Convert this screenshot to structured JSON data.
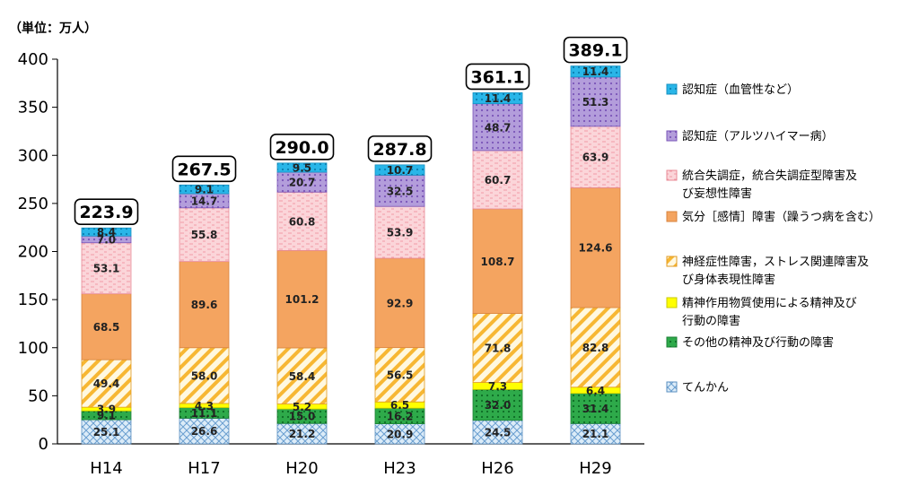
{
  "chart_data": {
    "type": "bar",
    "stacked": true,
    "unit_label": "（単位：万人）",
    "categories": [
      "H14",
      "H17",
      "H20",
      "H23",
      "H26",
      "H29"
    ],
    "ylim": [
      0,
      400
    ],
    "yticks": [
      0,
      50,
      100,
      150,
      200,
      250,
      300,
      350,
      400
    ],
    "grid": false,
    "legend_position": "right",
    "totals": [
      "223.9",
      "267.5",
      "290.0",
      "287.8",
      "361.1",
      "389.1"
    ],
    "series": [
      {
        "name": "てんかん",
        "pattern": "crosshatch",
        "color": "#bdd7ee",
        "values": [
          25.1,
          26.6,
          21.2,
          20.9,
          24.5,
          21.1
        ]
      },
      {
        "name": "その他の精神及び行動の障害",
        "pattern": "dots",
        "color": "#2eaa4a",
        "values": [
          9.1,
          11.1,
          15.0,
          16.2,
          32.0,
          31.4
        ]
      },
      {
        "name": "精神作用物質使用による精神及び行動の障害",
        "pattern": "solid",
        "color": "#ffff00",
        "values": [
          3.9,
          4.3,
          5.2,
          6.5,
          7.3,
          6.4
        ]
      },
      {
        "name": "神経症性障害，ストレス関連障害及び身体表現性障害",
        "pattern": "diagonal",
        "color": "#f5a623",
        "values": [
          49.4,
          58.0,
          58.4,
          56.5,
          71.8,
          82.8
        ]
      },
      {
        "name": "気分［感情］障害（躁うつ病を含む）",
        "pattern": "solid",
        "color": "#f4a460",
        "values": [
          68.5,
          89.6,
          101.2,
          92.9,
          108.7,
          124.6
        ]
      },
      {
        "name": "統合失調症，統合失調症型障害及び妄想性障害",
        "pattern": "dashes",
        "color": "#fad0d4",
        "values": [
          53.1,
          55.8,
          60.8,
          53.9,
          60.7,
          63.9
        ]
      },
      {
        "name": "認知症（アルツハイマー病）",
        "pattern": "dots",
        "color": "#b39ddb",
        "values": [
          7.0,
          14.7,
          20.7,
          32.5,
          48.7,
          51.3
        ]
      },
      {
        "name": "認知症（血管性など）",
        "pattern": "dots",
        "color": "#29b6e8",
        "values": [
          8.4,
          9.1,
          9.5,
          10.7,
          11.4,
          11.4
        ]
      }
    ],
    "legend_lines": [
      {
        "series": 7,
        "lines": [
          "認知症（血管性など）"
        ]
      },
      {
        "series": 6,
        "lines": [
          "認知症（アルツハイマー病）"
        ]
      },
      {
        "series": 5,
        "lines": [
          "統合失調症，統合失調症型障害及",
          "び妄想性障害"
        ]
      },
      {
        "series": 4,
        "lines": [
          "気分［感情］障害（躁うつ病を含む）"
        ]
      },
      {
        "series": 3,
        "lines": [
          "神経症性障害，ストレス関連障害及",
          "び身体表現性障害"
        ]
      },
      {
        "series": 2,
        "lines": [
          "精神作用物質使用による精神及び",
          "行動の障害"
        ]
      },
      {
        "series": 1,
        "lines": [
          "その他の精神及び行動の障害"
        ]
      },
      {
        "series": 0,
        "lines": [
          "てんかん"
        ]
      }
    ]
  }
}
